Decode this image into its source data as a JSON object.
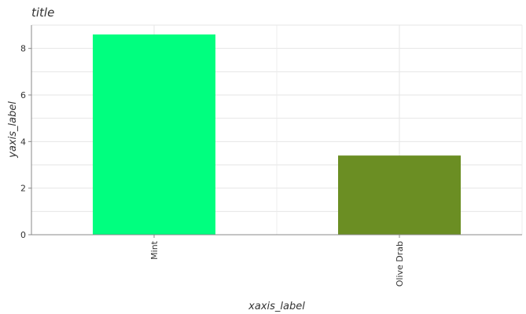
{
  "chart_data": {
    "type": "bar",
    "title": "title",
    "xlabel": "xaxis_label",
    "ylabel": "yaxis_label",
    "categories": [
      "Mint",
      "Olive Drab"
    ],
    "values": [
      8.6,
      3.4
    ],
    "colors": [
      "#00ff7f",
      "#6b8e23"
    ],
    "ylim": [
      0,
      9
    ],
    "yticks": [
      0,
      2,
      4,
      6,
      8
    ],
    "grid": true
  }
}
